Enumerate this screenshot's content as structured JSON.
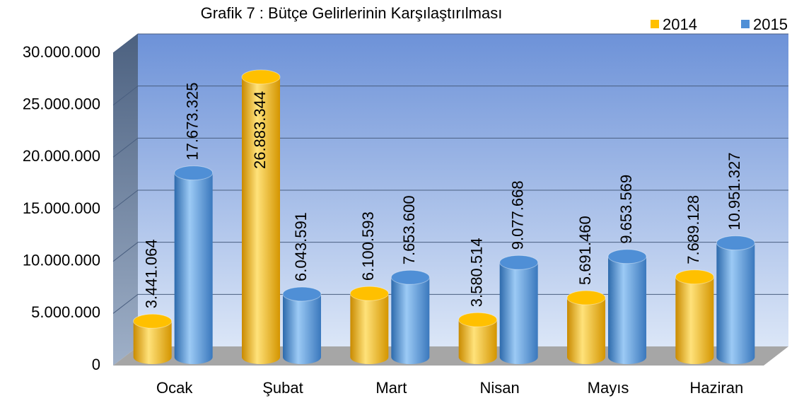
{
  "chart_data": {
    "type": "bar",
    "title": "Grafik 7 : Bütçe Gelirlerinin Karşılaştırılması",
    "categories": [
      "Ocak",
      "Şubat",
      "Mart",
      "Nisan",
      "Mayıs",
      "Haziran"
    ],
    "series": [
      {
        "name": "2014",
        "color": "#ffc000",
        "values": [
          3441064,
          26883344,
          6100593,
          3580514,
          5691460,
          7689128
        ],
        "value_labels": [
          "3.441.064",
          "26.883.344",
          "6.100.593",
          "3.580.514",
          "5.691.460",
          "7.689.128"
        ]
      },
      {
        "name": "2015",
        "color": "#4f8fd6",
        "values": [
          17673325,
          6043591,
          7653600,
          9077668,
          9653569,
          10951327
        ],
        "value_labels": [
          "17.673.325",
          "6.043.591",
          "7.653.600",
          "9.077.668",
          "9.653.569",
          "10.951.327"
        ]
      }
    ],
    "ylim": [
      0,
      30000000
    ],
    "yticks": [
      0,
      {
        "value": 5000000,
        "label": "5.000.000"
      },
      {
        "value": 10000000,
        "label": "10.000.000"
      },
      {
        "value": 15000000,
        "label": "15.000.000"
      },
      {
        "value": 20000000,
        "label": "20.000.000"
      },
      {
        "value": 25000000,
        "label": "25.000.000"
      },
      {
        "value": 30000000,
        "label": "30.000.000"
      }
    ],
    "grid": true,
    "legend": "top-right"
  }
}
